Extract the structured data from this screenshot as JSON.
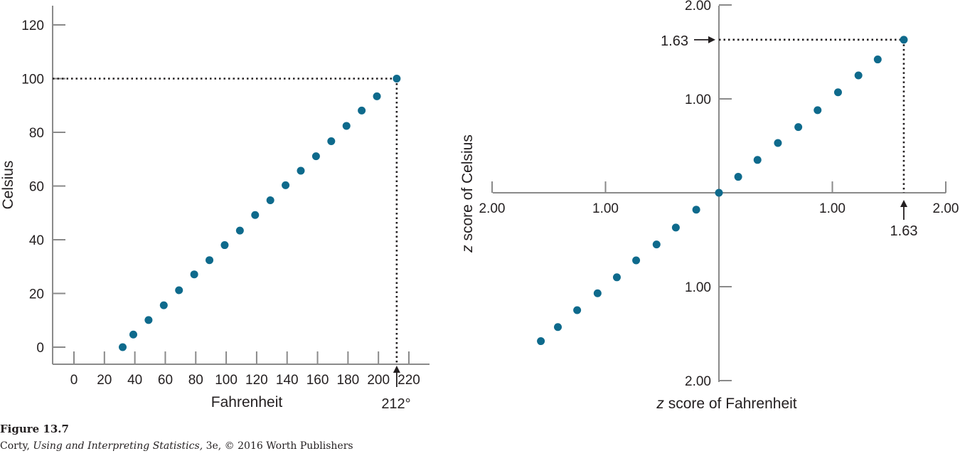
{
  "colors": {
    "point": "#0e6a8c",
    "axis": "#8a8a8a",
    "text": "#231f20",
    "guide": "#231f20"
  },
  "chart_data": [
    {
      "type": "scatter",
      "xlabel": "Fahrenheit",
      "ylabel": "Celsius",
      "xlim": [
        -15,
        225
      ],
      "ylim": [
        -7,
        127
      ],
      "xticks": [
        0,
        20,
        40,
        60,
        80,
        100,
        120,
        140,
        160,
        180,
        200,
        220
      ],
      "yticks": [
        0,
        20,
        40,
        60,
        80,
        100,
        120
      ],
      "x": [
        32,
        39,
        49,
        59,
        69,
        79,
        89,
        99,
        109,
        119,
        129,
        139,
        149,
        159,
        169,
        179,
        189,
        199,
        212
      ],
      "y": [
        0,
        4.7,
        10.1,
        15.6,
        21.2,
        27.1,
        32.4,
        38.0,
        43.4,
        49.2,
        54.7,
        60.3,
        65.7,
        71.1,
        76.7,
        82.4,
        88.1,
        93.4,
        100
      ],
      "guide": {
        "x": 212,
        "y": 100
      },
      "annotation": "212°"
    },
    {
      "type": "scatter",
      "xlabel_italic": "z",
      "xlabel": "score of Fahrenheit",
      "ylabel_italic": "z",
      "ylabel": "score of Celsius",
      "xlim": [
        -2,
        2
      ],
      "ylim": [
        -2,
        2
      ],
      "xticks": [
        -2,
        -1,
        1,
        2
      ],
      "xtick_labels": [
        "2.00",
        "1.00",
        "1.00",
        "2.00"
      ],
      "yticks": [
        2,
        1,
        -1,
        -2
      ],
      "ytick_labels": [
        "2.00",
        "1.00",
        "1.00",
        "2.00"
      ],
      "x": [
        -1.57,
        -1.42,
        -1.25,
        -1.07,
        -0.9,
        -0.73,
        -0.55,
        -0.38,
        -0.2,
        0.0,
        0.17,
        0.34,
        0.52,
        0.7,
        0.87,
        1.05,
        1.23,
        1.4,
        1.63
      ],
      "y": [
        -1.58,
        -1.43,
        -1.25,
        -1.07,
        -0.9,
        -0.72,
        -0.55,
        -0.37,
        -0.18,
        0.0,
        0.17,
        0.35,
        0.53,
        0.7,
        0.88,
        1.07,
        1.25,
        1.42,
        1.63
      ],
      "guide": {
        "x": 1.63,
        "y": 1.63
      },
      "annotation_x": "1.63",
      "annotation_y": "1.63"
    }
  ],
  "caption": {
    "figure": "Figure 13.7",
    "credit_author": "Corty, ",
    "credit_title": "Using and Interpreting Statistics,",
    "credit_rest": " 3e, © 2016 Worth Publishers"
  }
}
